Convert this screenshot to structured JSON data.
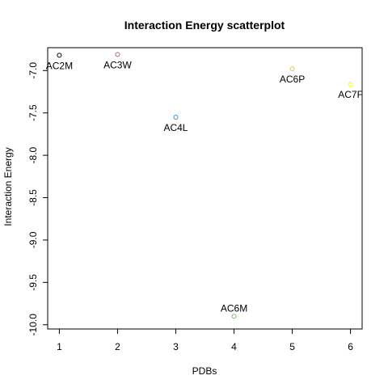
{
  "chart_data": {
    "type": "scatter",
    "title": "Interaction Energy scatterplot",
    "xlabel": "PDBs",
    "ylabel": "Interaction Energy",
    "xlim": [
      0.8,
      6.2
    ],
    "ylim": [
      -10.05,
      -6.73
    ],
    "x_ticks": [
      1,
      2,
      3,
      4,
      5,
      6
    ],
    "x_tick_labels": [
      "1",
      "2",
      "3",
      "4",
      "5",
      "6"
    ],
    "y_ticks": [
      -10.0,
      -9.5,
      -9.0,
      -8.5,
      -8.0,
      -7.5,
      -7.0
    ],
    "y_tick_labels": [
      "-10.0",
      "-9.5",
      "-9.0",
      "-8.5",
      "-8.0",
      "-7.5",
      "-7.0"
    ],
    "grid": false,
    "points": [
      {
        "x": 1,
        "y": -6.82,
        "label": "AC2M",
        "color": "#000000",
        "label_position": "below"
      },
      {
        "x": 2,
        "y": -6.81,
        "label": "AC3W",
        "color": "#df536b",
        "label_position": "below"
      },
      {
        "x": 3,
        "y": -7.55,
        "label": "AC4L",
        "color": "#2297e6",
        "label_position": "below"
      },
      {
        "x": 4,
        "y": -9.9,
        "label": "AC6M",
        "color": "#61d04f",
        "label_position": "above"
      },
      {
        "x": 5,
        "y": -6.98,
        "label": "AC6P",
        "color": "#f5c710",
        "label_position": "below"
      },
      {
        "x": 6,
        "y": -7.16,
        "label": "AC7F",
        "color": "#ffff00",
        "label_position": "below"
      }
    ]
  }
}
